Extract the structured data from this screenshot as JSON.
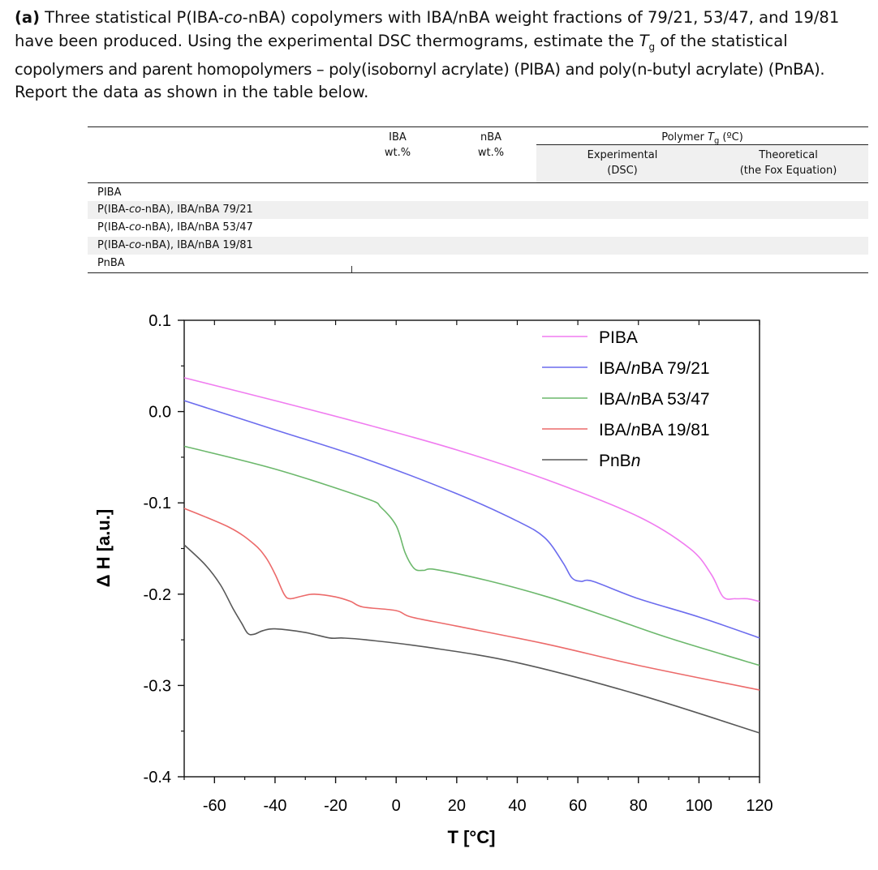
{
  "question": {
    "label": "(a)",
    "line1_a": " Three statistical P(IBA-",
    "line1_co": "co",
    "line1_b": "-nBA) copolymers with IBA/nBA weight fractions of 79/21, 53/47, and 19/81",
    "line2": "have been produced. Using the experimental DSC thermograms, estimate the ",
    "line2_tg_T": "T",
    "line2_tg_g": "g",
    "line2_b": " of the statistical",
    "line3": "copolymers and parent homopolymers – poly(isobornyl acrylate) (PIBA) and poly(n-butyl acrylate) (PnBA).",
    "line4": "Report the data as shown in the table below."
  },
  "table": {
    "col_iba_1": "IBA",
    "col_iba_2": "wt.%",
    "col_nba_1": "nBA",
    "col_nba_2": "wt.%",
    "col_tg_a": "Polymer ",
    "col_tg_T": "T",
    "col_tg_g": "g",
    "col_tg_b": " (ºC)",
    "col_exp_1": "Experimental",
    "col_exp_2": "(DSC)",
    "col_theo_1": "Theoretical",
    "col_theo_2": "(the Fox Equation)",
    "rows": [
      {
        "a": "PIBA",
        "co": "",
        "b": ""
      },
      {
        "a": "P(IBA-",
        "co": "co",
        "b": "-nBA), IBA/nBA 79/21"
      },
      {
        "a": "P(IBA-",
        "co": "co",
        "b": "-nBA), IBA/nBA 53/47"
      },
      {
        "a": "P(IBA-",
        "co": "co",
        "b": "-nBA), IBA/nBA 19/81"
      },
      {
        "a": "PnBA",
        "co": "",
        "b": ""
      }
    ]
  },
  "chart_data": {
    "type": "line",
    "xlabel": "T [°C]",
    "ylabel": "Δ H [a.u.]",
    "xlim": [
      -70,
      120
    ],
    "ylim": [
      -0.4,
      0.1
    ],
    "x_ticks": [
      "-60",
      "-40",
      "-20",
      "0",
      "20",
      "40",
      "60",
      "80",
      "100",
      "120"
    ],
    "y_ticks": [
      "0.1",
      "0.0",
      "-0.1",
      "-0.2",
      "-0.3",
      "-0.4"
    ],
    "legend_position": "top-right",
    "series": [
      {
        "name": "PIBA",
        "color": "#f07cf0",
        "points": [
          [
            -70,
            0.037
          ],
          [
            -40,
            0.012
          ],
          [
            -10,
            -0.014
          ],
          [
            20,
            -0.042
          ],
          [
            50,
            -0.075
          ],
          [
            80,
            -0.115
          ],
          [
            97,
            -0.15
          ],
          [
            104,
            -0.178
          ],
          [
            108,
            -0.203
          ],
          [
            112,
            -0.205
          ],
          [
            116,
            -0.205
          ],
          [
            120,
            -0.208
          ]
        ]
      },
      {
        "name": "IBA/nBA 79/21",
        "color": "#6c6cee",
        "points": [
          [
            -70,
            0.012
          ],
          [
            -40,
            -0.02
          ],
          [
            -10,
            -0.052
          ],
          [
            20,
            -0.09
          ],
          [
            40,
            -0.12
          ],
          [
            49,
            -0.138
          ],
          [
            55,
            -0.165
          ],
          [
            58,
            -0.182
          ],
          [
            61,
            -0.186
          ],
          [
            65,
            -0.186
          ],
          [
            80,
            -0.205
          ],
          [
            100,
            -0.225
          ],
          [
            120,
            -0.248
          ]
        ]
      },
      {
        "name": "IBA/nBA 53/47",
        "color": "#6cb86c",
        "points": [
          [
            -70,
            -0.038
          ],
          [
            -40,
            -0.063
          ],
          [
            -10,
            -0.095
          ],
          [
            -5,
            -0.105
          ],
          [
            0,
            -0.125
          ],
          [
            3,
            -0.155
          ],
          [
            6,
            -0.172
          ],
          [
            9,
            -0.174
          ],
          [
            13,
            -0.173
          ],
          [
            30,
            -0.185
          ],
          [
            50,
            -0.203
          ],
          [
            70,
            -0.225
          ],
          [
            90,
            -0.248
          ],
          [
            120,
            -0.278
          ]
        ]
      },
      {
        "name": "IBA/nBA 19/81",
        "color": "#ec6a6a",
        "points": [
          [
            -70,
            -0.106
          ],
          [
            -55,
            -0.127
          ],
          [
            -47,
            -0.145
          ],
          [
            -43,
            -0.16
          ],
          [
            -40,
            -0.178
          ],
          [
            -37,
            -0.2
          ],
          [
            -35,
            -0.205
          ],
          [
            -31,
            -0.202
          ],
          [
            -27,
            -0.2
          ],
          [
            -20,
            -0.203
          ],
          [
            -15,
            -0.208
          ],
          [
            -11,
            -0.214
          ],
          [
            0,
            -0.218
          ],
          [
            5,
            -0.225
          ],
          [
            20,
            -0.235
          ],
          [
            50,
            -0.255
          ],
          [
            80,
            -0.278
          ],
          [
            120,
            -0.305
          ]
        ]
      },
      {
        "name": "PnBn",
        "color": "#585858",
        "points": [
          [
            -70,
            -0.146
          ],
          [
            -63,
            -0.168
          ],
          [
            -58,
            -0.19
          ],
          [
            -54,
            -0.215
          ],
          [
            -51,
            -0.232
          ],
          [
            -49,
            -0.243
          ],
          [
            -47,
            -0.244
          ],
          [
            -44,
            -0.24
          ],
          [
            -40,
            -0.238
          ],
          [
            -30,
            -0.242
          ],
          [
            -22,
            -0.248
          ],
          [
            -18,
            -0.248
          ],
          [
            -10,
            -0.25
          ],
          [
            10,
            -0.258
          ],
          [
            40,
            -0.275
          ],
          [
            80,
            -0.31
          ],
          [
            120,
            -0.352
          ]
        ]
      }
    ]
  }
}
